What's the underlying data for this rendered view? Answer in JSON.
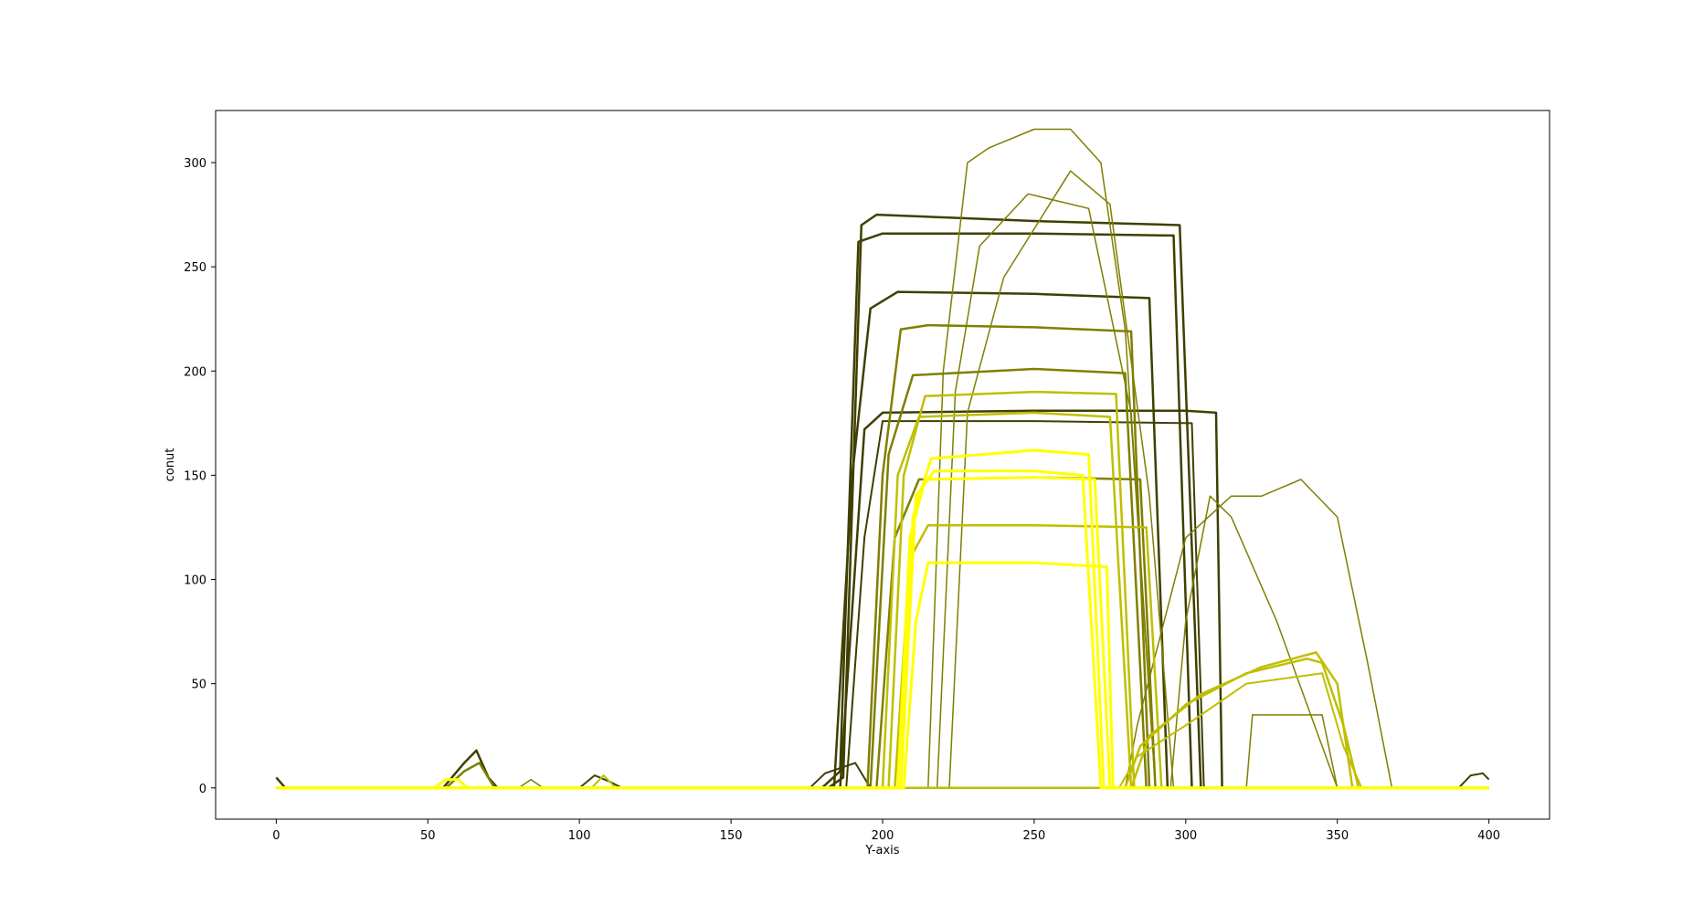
{
  "chart_data": {
    "type": "line",
    "title": "",
    "xlabel": "Y-axis",
    "ylabel": "conut",
    "xlim": [
      -20,
      420
    ],
    "ylim": [
      -15,
      325
    ],
    "xticks": [
      0,
      50,
      100,
      150,
      200,
      250,
      300,
      350,
      400
    ],
    "yticks": [
      0,
      50,
      100,
      150,
      200,
      250,
      300
    ],
    "grid": false,
    "legend": "none",
    "colors": {
      "dark": "#3f3f00",
      "mid": "#7f7f00",
      "light": "#bfbf00",
      "bright": "#ffff00",
      "axes": "#000000",
      "background": "#ffffff"
    },
    "series": [
      {
        "color": "#3f3f00",
        "width": 2.5,
        "points": [
          [
            0,
            5
          ],
          [
            3,
            0
          ],
          [
            182,
            0
          ],
          [
            187,
            5
          ],
          [
            193,
            270
          ],
          [
            198,
            275
          ],
          [
            250,
            272
          ],
          [
            298,
            270
          ],
          [
            305,
            0
          ],
          [
            400,
            0
          ]
        ]
      },
      {
        "color": "#3f3f00",
        "width": 2.5,
        "points": [
          [
            0,
            0
          ],
          [
            180,
            0
          ],
          [
            186,
            8
          ],
          [
            192,
            262
          ],
          [
            200,
            266
          ],
          [
            250,
            266
          ],
          [
            296,
            265
          ],
          [
            302,
            0
          ],
          [
            400,
            0
          ]
        ]
      },
      {
        "color": "#3f3f00",
        "width": 2.5,
        "points": [
          [
            0,
            0
          ],
          [
            55,
            0
          ],
          [
            62,
            12
          ],
          [
            66,
            18
          ],
          [
            70,
            5
          ],
          [
            73,
            0
          ],
          [
            184,
            0
          ],
          [
            190,
            150
          ],
          [
            196,
            230
          ],
          [
            205,
            238
          ],
          [
            250,
            237
          ],
          [
            288,
            235
          ],
          [
            294,
            0
          ],
          [
            400,
            0
          ]
        ]
      },
      {
        "color": "#3f3f00",
        "width": 2.5,
        "points": [
          [
            0,
            0
          ],
          [
            186,
            0
          ],
          [
            194,
            172
          ],
          [
            200,
            180
          ],
          [
            250,
            181
          ],
          [
            300,
            181
          ],
          [
            310,
            180
          ],
          [
            312,
            0
          ],
          [
            400,
            0
          ]
        ]
      },
      {
        "color": "#3f3f00",
        "width": 2,
        "points": [
          [
            0,
            0
          ],
          [
            100,
            0
          ],
          [
            105,
            6
          ],
          [
            110,
            3
          ],
          [
            114,
            0
          ],
          [
            176,
            0
          ],
          [
            181,
            7
          ],
          [
            191,
            12
          ],
          [
            196,
            0
          ],
          [
            390,
            0
          ],
          [
            394,
            6
          ],
          [
            398,
            7
          ],
          [
            400,
            4
          ]
        ]
      },
      {
        "color": "#3f3f00",
        "width": 2,
        "points": [
          [
            0,
            0
          ],
          [
            188,
            0
          ],
          [
            194,
            120
          ],
          [
            200,
            176
          ],
          [
            250,
            176
          ],
          [
            302,
            175
          ],
          [
            306,
            0
          ],
          [
            400,
            0
          ]
        ]
      },
      {
        "color": "#7f7f00",
        "width": 2.5,
        "points": [
          [
            0,
            0
          ],
          [
            56,
            0
          ],
          [
            62,
            8
          ],
          [
            67,
            12
          ],
          [
            72,
            0
          ],
          [
            195,
            0
          ],
          [
            200,
            150
          ],
          [
            206,
            220
          ],
          [
            215,
            222
          ],
          [
            250,
            221
          ],
          [
            282,
            219
          ],
          [
            288,
            0
          ],
          [
            400,
            0
          ]
        ]
      },
      {
        "color": "#7f7f00",
        "width": 2.5,
        "points": [
          [
            0,
            0
          ],
          [
            196,
            0
          ],
          [
            202,
            160
          ],
          [
            210,
            198
          ],
          [
            250,
            201
          ],
          [
            280,
            199
          ],
          [
            287,
            0
          ],
          [
            400,
            0
          ]
        ]
      },
      {
        "color": "#7f7f00",
        "width": 2.5,
        "points": [
          [
            0,
            0
          ],
          [
            198,
            0
          ],
          [
            204,
            120
          ],
          [
            212,
            148
          ],
          [
            250,
            149
          ],
          [
            285,
            148
          ],
          [
            290,
            0
          ],
          [
            400,
            0
          ]
        ]
      },
      {
        "color": "#7f7f00",
        "width": 1.5,
        "points": [
          [
            0,
            0
          ],
          [
            215,
            0
          ],
          [
            220,
            200
          ],
          [
            228,
            300
          ],
          [
            235,
            307
          ],
          [
            250,
            316
          ],
          [
            262,
            316
          ],
          [
            272,
            300
          ],
          [
            280,
            220
          ],
          [
            290,
            0
          ],
          [
            400,
            0
          ]
        ]
      },
      {
        "color": "#7f7f00",
        "width": 1.5,
        "points": [
          [
            0,
            0
          ],
          [
            218,
            0
          ],
          [
            224,
            190
          ],
          [
            232,
            260
          ],
          [
            248,
            285
          ],
          [
            268,
            278
          ],
          [
            282,
            180
          ],
          [
            290,
            0
          ],
          [
            400,
            0
          ]
        ]
      },
      {
        "color": "#7f7f00",
        "width": 1.5,
        "points": [
          [
            0,
            0
          ],
          [
            222,
            0
          ],
          [
            228,
            180
          ],
          [
            240,
            245
          ],
          [
            262,
            296
          ],
          [
            275,
            280
          ],
          [
            288,
            140
          ],
          [
            296,
            0
          ],
          [
            400,
            0
          ]
        ]
      },
      {
        "color": "#7f7f00",
        "width": 1.5,
        "points": [
          [
            0,
            0
          ],
          [
            280,
            0
          ],
          [
            284,
            30
          ],
          [
            300,
            120
          ],
          [
            315,
            140
          ],
          [
            325,
            140
          ],
          [
            338,
            148
          ],
          [
            350,
            130
          ],
          [
            360,
            60
          ],
          [
            368,
            0
          ],
          [
            400,
            0
          ]
        ]
      },
      {
        "color": "#7f7f00",
        "width": 1.5,
        "points": [
          [
            0,
            0
          ],
          [
            295,
            0
          ],
          [
            300,
            80
          ],
          [
            308,
            140
          ],
          [
            315,
            130
          ],
          [
            330,
            80
          ],
          [
            340,
            40
          ],
          [
            350,
            0
          ],
          [
            400,
            0
          ]
        ]
      },
      {
        "color": "#7f7f00",
        "width": 1.5,
        "points": [
          [
            0,
            0
          ],
          [
            80,
            0
          ],
          [
            84,
            4
          ],
          [
            88,
            0
          ],
          [
            320,
            0
          ],
          [
            322,
            35
          ],
          [
            330,
            35
          ],
          [
            345,
            35
          ],
          [
            350,
            0
          ],
          [
            400,
            0
          ]
        ]
      },
      {
        "color": "#bfbf00",
        "width": 2.5,
        "points": [
          [
            0,
            0
          ],
          [
            200,
            0
          ],
          [
            205,
            150
          ],
          [
            212,
            178
          ],
          [
            250,
            180
          ],
          [
            275,
            178
          ],
          [
            282,
            0
          ],
          [
            400,
            0
          ]
        ]
      },
      {
        "color": "#bfbf00",
        "width": 2.5,
        "points": [
          [
            0,
            0
          ],
          [
            202,
            0
          ],
          [
            207,
            150
          ],
          [
            214,
            188
          ],
          [
            250,
            190
          ],
          [
            277,
            189
          ],
          [
            283,
            0
          ],
          [
            400,
            0
          ]
        ]
      },
      {
        "color": "#bfbf00",
        "width": 2.5,
        "points": [
          [
            0,
            0
          ],
          [
            204,
            0
          ],
          [
            209,
            110
          ],
          [
            215,
            126
          ],
          [
            250,
            126
          ],
          [
            287,
            125
          ],
          [
            292,
            0
          ],
          [
            400,
            0
          ]
        ]
      },
      {
        "color": "#bfbf00",
        "width": 2.5,
        "points": [
          [
            0,
            0
          ],
          [
            280,
            0
          ],
          [
            285,
            20
          ],
          [
            300,
            40
          ],
          [
            320,
            55
          ],
          [
            340,
            62
          ],
          [
            345,
            60
          ],
          [
            352,
            30
          ],
          [
            357,
            0
          ],
          [
            400,
            0
          ]
        ]
      },
      {
        "color": "#bfbf00",
        "width": 2.5,
        "points": [
          [
            0,
            0
          ],
          [
            282,
            0
          ],
          [
            288,
            25
          ],
          [
            305,
            45
          ],
          [
            325,
            58
          ],
          [
            343,
            65
          ],
          [
            350,
            50
          ],
          [
            355,
            0
          ],
          [
            400,
            0
          ]
        ]
      },
      {
        "color": "#bfbf00",
        "width": 2,
        "points": [
          [
            0,
            0
          ],
          [
            104,
            0
          ],
          [
            108,
            6
          ],
          [
            112,
            0
          ],
          [
            278,
            0
          ],
          [
            284,
            15
          ],
          [
            300,
            30
          ],
          [
            320,
            50
          ],
          [
            345,
            55
          ],
          [
            352,
            20
          ],
          [
            358,
            0
          ],
          [
            400,
            0
          ]
        ]
      },
      {
        "color": "#ffff00",
        "width": 3,
        "points": [
          [
            0,
            0
          ],
          [
            52,
            0
          ],
          [
            56,
            4
          ],
          [
            60,
            4
          ],
          [
            63,
            0
          ],
          [
            206,
            0
          ],
          [
            211,
            140
          ],
          [
            217,
            152
          ],
          [
            250,
            152
          ],
          [
            266,
            150
          ],
          [
            272,
            0
          ],
          [
            400,
            0
          ]
        ]
      },
      {
        "color": "#ffff00",
        "width": 3,
        "points": [
          [
            0,
            0
          ],
          [
            206,
            0
          ],
          [
            210,
            130
          ],
          [
            216,
            158
          ],
          [
            250,
            162
          ],
          [
            268,
            160
          ],
          [
            273,
            0
          ],
          [
            400,
            0
          ]
        ]
      },
      {
        "color": "#ffff00",
        "width": 3,
        "points": [
          [
            0,
            0
          ],
          [
            207,
            0
          ],
          [
            211,
            80
          ],
          [
            215,
            108
          ],
          [
            250,
            108
          ],
          [
            274,
            106
          ],
          [
            276,
            0
          ],
          [
            400,
            0
          ]
        ]
      },
      {
        "color": "#ffff00",
        "width": 3,
        "points": [
          [
            0,
            0
          ],
          [
            205,
            0
          ],
          [
            209,
            120
          ],
          [
            214,
            148
          ],
          [
            250,
            149
          ],
          [
            270,
            148
          ],
          [
            275,
            0
          ],
          [
            400,
            0
          ]
        ]
      }
    ]
  }
}
